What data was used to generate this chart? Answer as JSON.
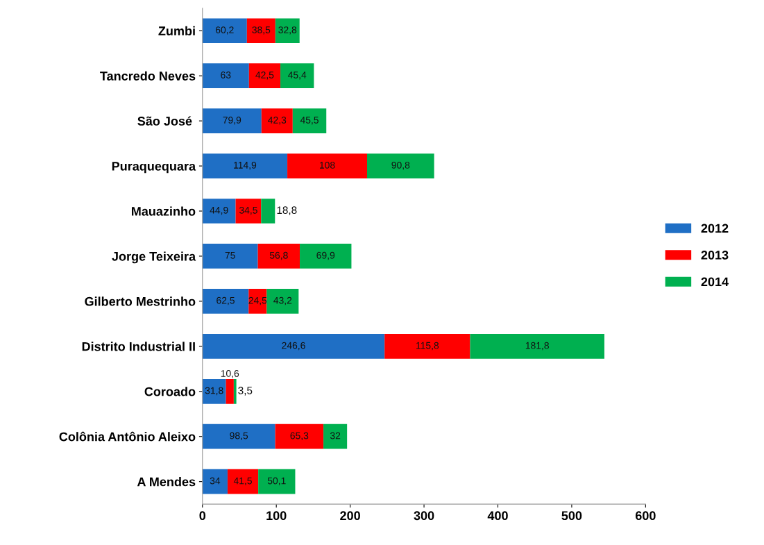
{
  "chart_data": {
    "type": "bar",
    "orientation": "horizontal",
    "stacked": true,
    "categories": [
      "Zumbi",
      "Tancredo Neves",
      "São José ",
      "Puraquequara",
      "Mauazinho",
      "Jorge Teixeira",
      "Gilberto Mestrinho",
      "Distrito Industrial II",
      "Coroado",
      "Colônia Antônio Aleixo",
      "A Mendes"
    ],
    "series": [
      {
        "name": "2012",
        "color": "#1f6fc5",
        "values": [
          60.2,
          63,
          79.9,
          114.9,
          44.9,
          75,
          62.5,
          246.6,
          31.8,
          98.5,
          34
        ],
        "value_labels": [
          "60,2",
          "63",
          "79,9",
          "114,9",
          "44,9",
          "75",
          "62,5",
          "246,6",
          "31,8",
          "98,5",
          "34"
        ]
      },
      {
        "name": "2013",
        "color": "#ff0000",
        "values": [
          38.5,
          42.5,
          42.3,
          108,
          34.5,
          56.8,
          24.5,
          115.8,
          10.6,
          65.3,
          41.5
        ],
        "value_labels": [
          "38,5",
          "42,5",
          "42,3",
          "108",
          "34,5",
          "56,8",
          "24,5",
          "115,8",
          "10,6",
          "65,3",
          "41,5"
        ]
      },
      {
        "name": "2014",
        "color": "#00b050",
        "values": [
          32.8,
          45.4,
          45.5,
          90.8,
          18.8,
          69.9,
          43.2,
          181.8,
          3.5,
          32,
          50.1
        ],
        "value_labels": [
          "32,8",
          "45,4",
          "45,5",
          "90,8",
          "18,8",
          "69,9",
          "43,2",
          "181,8",
          "3,5",
          "32",
          "50,1"
        ]
      }
    ],
    "xlim": [
      0,
      600
    ],
    "xticks": [
      0,
      100,
      200,
      300,
      400,
      500,
      600
    ],
    "grid": false,
    "legend": "right"
  }
}
